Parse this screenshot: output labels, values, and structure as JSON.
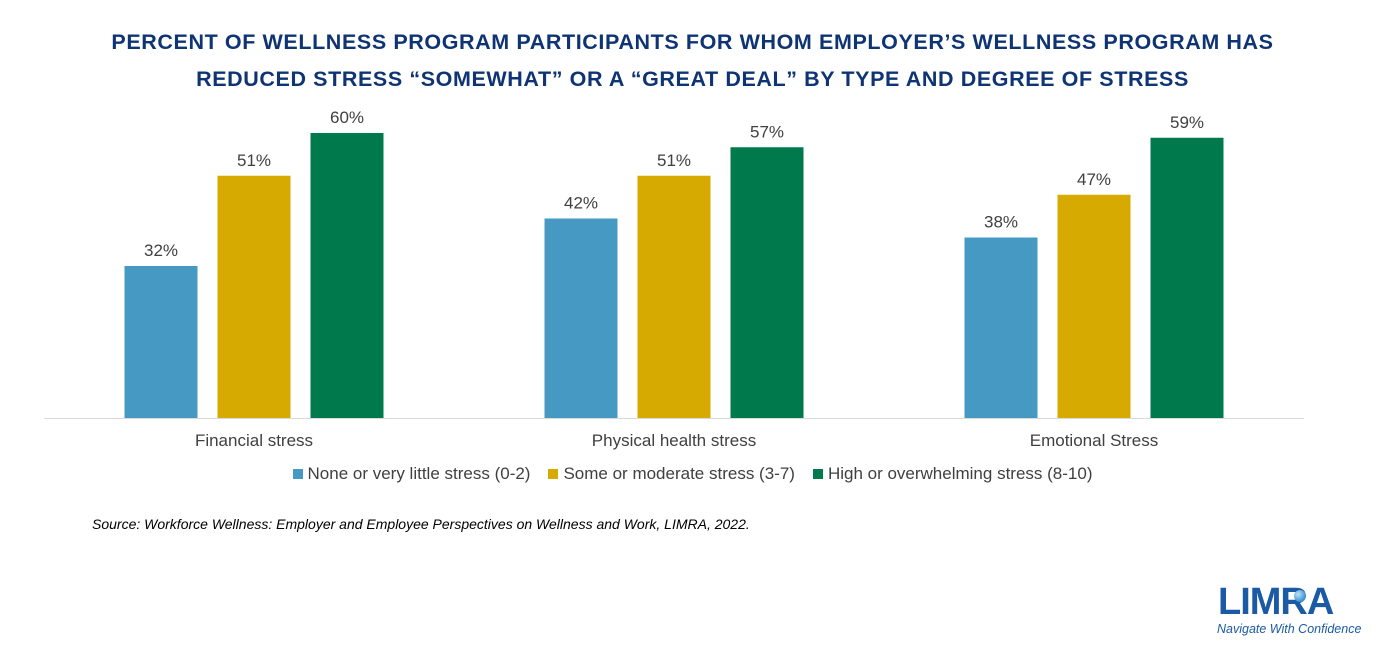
{
  "title_lines": [
    "PERCENT OF WELLNESS PROGRAM PARTICIPANTS FOR WHOM EMPLOYER’S WELLNESS PROGRAM HAS",
    "REDUCED STRESS “SOMEWHAT” OR A “GREAT DEAL” BY TYPE AND DEGREE OF STRESS"
  ],
  "chart_data": {
    "type": "bar",
    "title": "PERCENT OF WELLNESS PROGRAM PARTICIPANTS FOR WHOM EMPLOYER’S WELLNESS PROGRAM HAS REDUCED STRESS “SOMEWHAT” OR A “GREAT DEAL” BY TYPE AND DEGREE OF STRESS",
    "categories": [
      "Financial stress",
      "Physical health stress",
      "Emotional Stress"
    ],
    "series": [
      {
        "name": "None or very little stress (0-2)",
        "values": [
          32,
          42,
          38
        ],
        "color": "#4599c3"
      },
      {
        "name": "Some or moderate stress (3-7)",
        "values": [
          51,
          51,
          47
        ],
        "color": "#d6aa00"
      },
      {
        "name": "High or overwhelming stress (8-10)",
        "values": [
          60,
          57,
          59
        ],
        "color": "#007a4c"
      }
    ],
    "value_suffix": "%",
    "ylim": [
      0,
      100
    ],
    "legend_position": "bottom",
    "grid": false
  },
  "source": "Source: Workforce Wellness: Employer and Employee Perspectives on Wellness and Work, LIMRA, 2022.",
  "logo": {
    "wordmark": "LIMRA",
    "tagline": "Navigate With Confidence"
  }
}
